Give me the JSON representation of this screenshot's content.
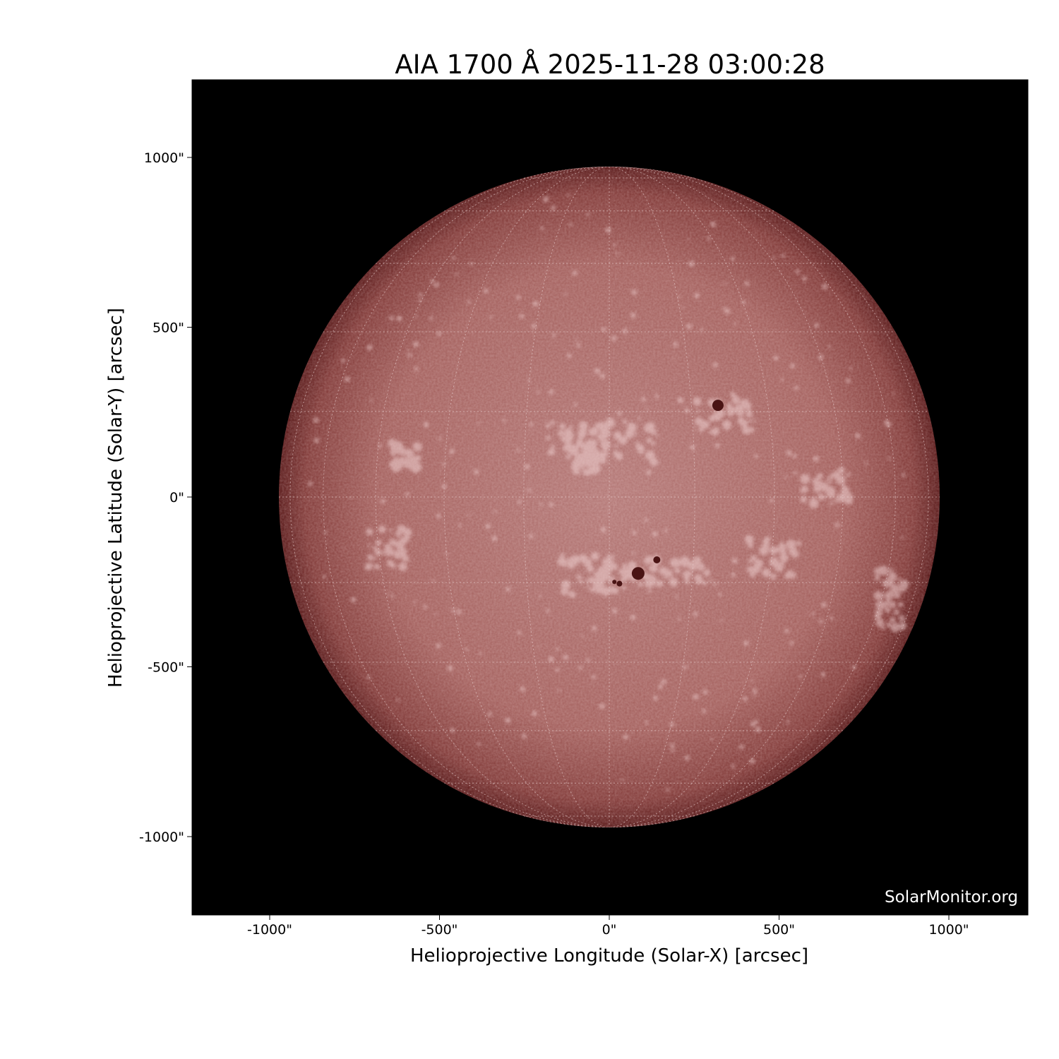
{
  "title": "AIA 1700 Å 2025-11-28 03:00:28",
  "xlabel": "Helioprojective Longitude (Solar-X) [arcsec]",
  "ylabel": "Helioprojective Latitude (Solar-Y) [arcsec]",
  "watermark": "SolarMonitor.org",
  "x_ticks": [
    "-1000\"",
    "-500\"",
    "0\"",
    "500\"",
    "1000\""
  ],
  "y_ticks": [
    "1000\"",
    "500\"",
    "0\"",
    "-500\"",
    "-1000\""
  ],
  "x_tick_values": [
    -1000,
    -500,
    0,
    500,
    1000
  ],
  "y_tick_values": [
    1000,
    500,
    0,
    -500,
    -1000
  ],
  "colors": {
    "background": "#000000",
    "disk_center": "#b57a78",
    "disk_limb": "#5c1c1c",
    "grid": "#e8cfcf"
  }
}
